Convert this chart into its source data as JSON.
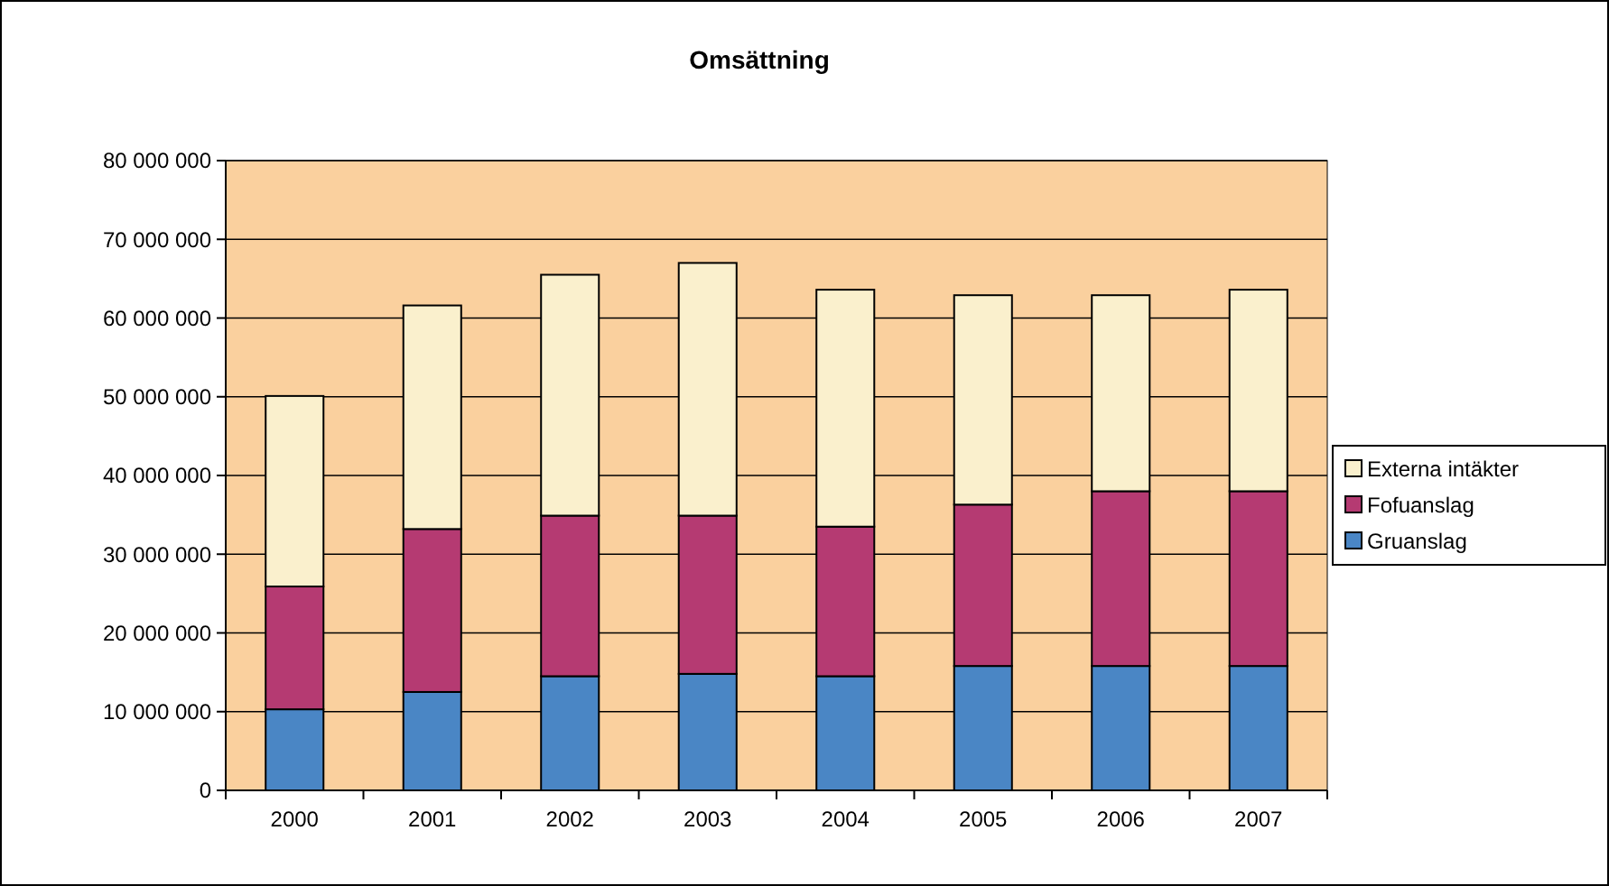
{
  "chart_data": {
    "type": "bar",
    "title": "Omsättning",
    "stacked": true,
    "categories": [
      "2000",
      "2001",
      "2002",
      "2003",
      "2004",
      "2005",
      "2006",
      "2007"
    ],
    "series": [
      {
        "name": "Gruanslag",
        "color": "#4a86c5",
        "values": [
          10300000,
          12500000,
          14500000,
          14800000,
          14500000,
          15800000,
          15800000,
          15800000
        ]
      },
      {
        "name": "Fofuanslag",
        "color": "#b53a72",
        "values": [
          15600000,
          20700000,
          20400000,
          20100000,
          19000000,
          20500000,
          22200000,
          22200000
        ]
      },
      {
        "name": "Externa intäkter",
        "color": "#faf0cd",
        "values": [
          24200000,
          28400000,
          30600000,
          32100000,
          30100000,
          26600000,
          24900000,
          25600000
        ]
      }
    ],
    "ylim": [
      0,
      80000000
    ],
    "yticks": [
      {
        "value": 0,
        "label": "0"
      },
      {
        "value": 10000000,
        "label": "10 000 000"
      },
      {
        "value": 20000000,
        "label": "20 000 000"
      },
      {
        "value": 30000000,
        "label": "30 000 000"
      },
      {
        "value": 40000000,
        "label": "40 000 000"
      },
      {
        "value": 50000000,
        "label": "50 000 000"
      },
      {
        "value": 60000000,
        "label": "60 000 000"
      },
      {
        "value": 70000000,
        "label": "70 000 000"
      },
      {
        "value": 80000000,
        "label": "80 000 000"
      }
    ],
    "grid": "y",
    "legend": "right"
  }
}
